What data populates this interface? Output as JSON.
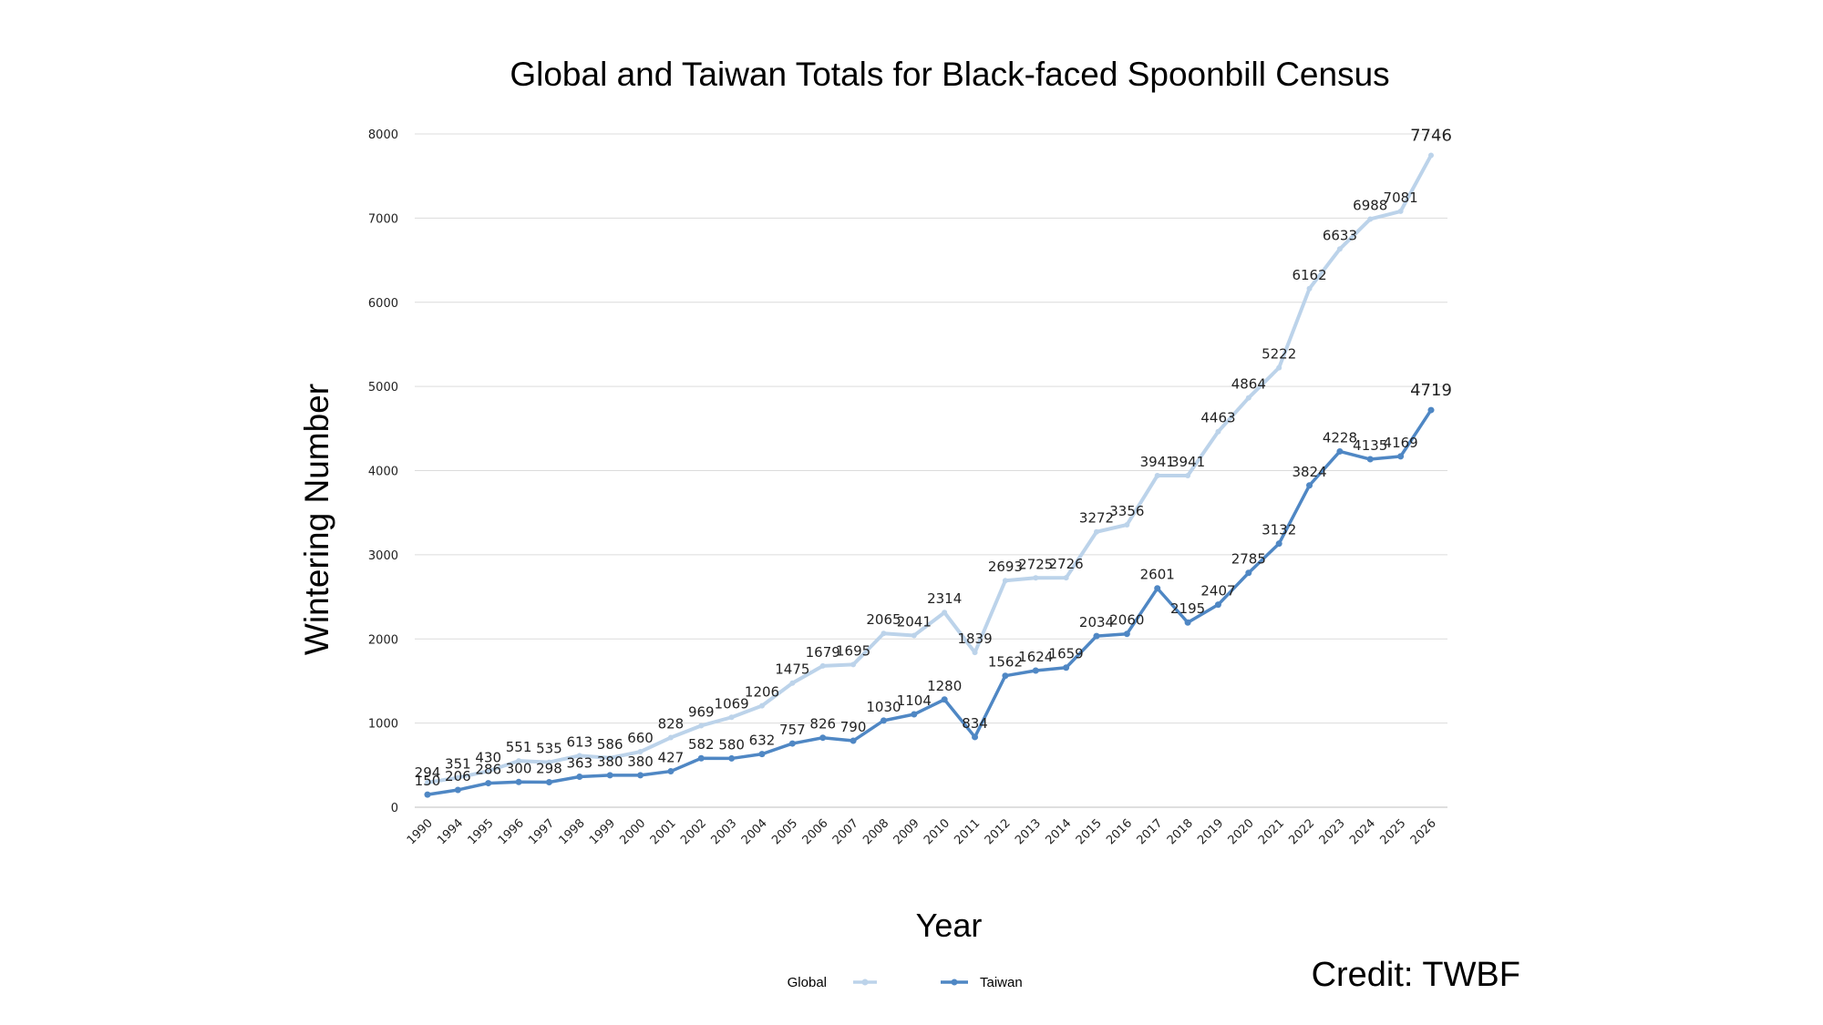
{
  "chart_data": {
    "type": "line",
    "title": "Global and Taiwan Totals for Black-faced Spoonbill Census",
    "xlabel": "Year",
    "ylabel": "Wintering Number",
    "ylim": [
      0,
      8000
    ],
    "yticks": [
      "0",
      "1000",
      "2000",
      "3000",
      "4000",
      "5000",
      "6000",
      "7000",
      "8000"
    ],
    "grid": true,
    "legend_position": "bottom-center",
    "categories": [
      "1990",
      "1994",
      "1995",
      "1996",
      "1997",
      "1998",
      "1999",
      "2000",
      "2001",
      "2002",
      "2003",
      "2004",
      "2005",
      "2006",
      "2007",
      "2008",
      "2009",
      "2010",
      "2011",
      "2012",
      "2013",
      "2014",
      "2015",
      "2016",
      "2017",
      "2018",
      "2019",
      "2020",
      "2021",
      "2022",
      "2023",
      "2024",
      "2025",
      "2026"
    ],
    "series": [
      {
        "name": "Global",
        "color": "#bcd3ea",
        "values": [
          294,
          351,
          430,
          551,
          535,
          613,
          586,
          660,
          828,
          969,
          1069,
          1206,
          1475,
          1679,
          1695,
          2065,
          2041,
          2314,
          1839,
          2693,
          2725,
          2726,
          3272,
          3356,
          3941,
          3941,
          4463,
          4864,
          5222,
          6162,
          6633,
          6988,
          7081,
          7746
        ]
      },
      {
        "name": "Taiwan",
        "color": "#4f87c4",
        "values": [
          150,
          206,
          286,
          300,
          298,
          363,
          380,
          380,
          427,
          582,
          580,
          632,
          757,
          826,
          790,
          1030,
          1104,
          1280,
          834,
          1562,
          1624,
          1659,
          2034,
          2060,
          2601,
          2195,
          2407,
          2785,
          3132,
          3824,
          4228,
          4135,
          4169,
          4719
        ]
      }
    ]
  },
  "credit": "Credit: TWBF"
}
